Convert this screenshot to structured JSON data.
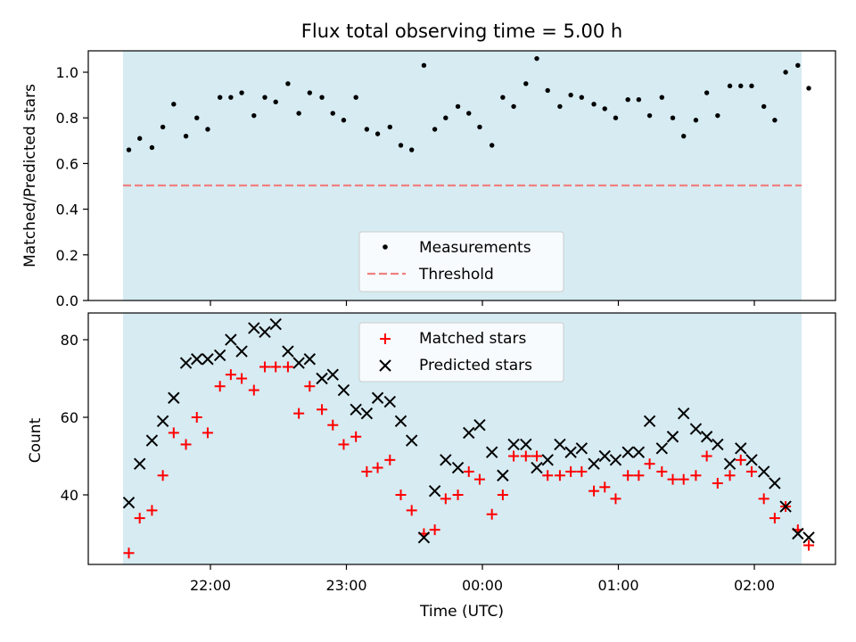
{
  "chart_data": [
    {
      "type": "scatter",
      "title": "Flux total observing time = 5.00 h",
      "xlabel": "",
      "ylabel": "Matched/Predicted stars",
      "xlim": [
        21.33,
        2.67
      ],
      "ylim": [
        0.0,
        1.08
      ],
      "yticks": [
        "0.0",
        "0.2",
        "0.4",
        "0.6",
        "0.8",
        "1.0"
      ],
      "grid": false,
      "legend_position": "lower-center",
      "shaded_interval": {
        "from": 21.4,
        "to": 2.35,
        "color": "#add8e6"
      },
      "series": [
        {
          "name": "Measurements",
          "color": "#000000",
          "marker": "dot",
          "x": [
            21.4,
            21.48,
            21.57,
            21.65,
            21.73,
            21.82,
            21.9,
            21.98,
            22.07,
            22.15,
            22.23,
            22.32,
            22.4,
            22.48,
            22.57,
            22.65,
            22.73,
            22.82,
            22.9,
            22.98,
            23.07,
            23.15,
            23.23,
            23.32,
            23.4,
            23.48,
            23.57,
            23.65,
            23.73,
            23.82,
            23.9,
            23.98,
            24.07,
            24.15,
            24.23,
            24.32,
            24.4,
            24.48,
            24.57,
            24.65,
            24.73,
            24.82,
            24.9,
            24.98,
            25.07,
            25.15,
            25.23,
            25.32,
            25.4,
            25.48,
            25.57,
            25.65,
            25.73,
            25.82,
            25.9,
            25.98,
            26.07,
            26.15,
            26.23,
            26.32,
            26.4
          ],
          "y": [
            0.66,
            0.71,
            0.67,
            0.76,
            0.86,
            0.72,
            0.8,
            0.75,
            0.89,
            0.89,
            0.91,
            0.81,
            0.89,
            0.87,
            0.95,
            0.82,
            0.91,
            0.89,
            0.82,
            0.79,
            0.89,
            0.75,
            0.73,
            0.76,
            0.68,
            0.66,
            1.03,
            0.75,
            0.8,
            0.85,
            0.82,
            0.76,
            0.68,
            0.89,
            0.85,
            0.95,
            1.06,
            0.92,
            0.85,
            0.9,
            0.89,
            0.86,
            0.84,
            0.8,
            0.88,
            0.88,
            0.81,
            0.89,
            0.8,
            0.72,
            0.79,
            0.91,
            0.81,
            0.94,
            0.94,
            0.94,
            0.85,
            0.79,
            1.0,
            1.03,
            0.93
          ]
        },
        {
          "name": "Threshold",
          "color": "#f08080",
          "line_style": "dashed",
          "value": 0.5
        }
      ]
    },
    {
      "type": "scatter",
      "title": "",
      "xlabel": "Time (UTC)",
      "ylabel": "Count",
      "xlim": [
        21.33,
        2.67
      ],
      "ylim": [
        22,
        87
      ],
      "yticks": [
        "40",
        "60",
        "80"
      ],
      "xticks": [
        "22:00",
        "23:00",
        "00:00",
        "01:00",
        "02:00"
      ],
      "grid": false,
      "legend_position": "upper-center",
      "shaded_interval": {
        "from": 21.4,
        "to": 2.35,
        "color": "#add8e6"
      },
      "series": [
        {
          "name": "Matched stars",
          "color": "#ff0000",
          "marker": "plus",
          "x": [
            21.4,
            21.48,
            21.57,
            21.65,
            21.73,
            21.82,
            21.9,
            21.98,
            22.07,
            22.15,
            22.23,
            22.32,
            22.4,
            22.48,
            22.57,
            22.65,
            22.73,
            22.82,
            22.9,
            22.98,
            23.07,
            23.15,
            23.23,
            23.32,
            23.4,
            23.48,
            23.57,
            23.65,
            23.73,
            23.82,
            23.9,
            23.98,
            24.07,
            24.15,
            24.23,
            24.32,
            24.4,
            24.48,
            24.57,
            24.65,
            24.73,
            24.82,
            24.9,
            24.98,
            25.07,
            25.15,
            25.23,
            25.32,
            25.4,
            25.48,
            25.57,
            25.65,
            25.73,
            25.82,
            25.9,
            25.98,
            26.07,
            26.15,
            26.23,
            26.32,
            26.4
          ],
          "y": [
            25,
            34,
            36,
            45,
            56,
            53,
            60,
            56,
            68,
            71,
            70,
            67,
            73,
            73,
            73,
            61,
            68,
            62,
            58,
            53,
            55,
            46,
            47,
            49,
            40,
            36,
            30,
            31,
            39,
            40,
            46,
            44,
            35,
            40,
            50,
            50,
            50,
            45,
            45,
            46,
            46,
            41,
            42,
            39,
            45,
            45,
            48,
            46,
            44,
            44,
            45,
            50,
            43,
            45,
            49,
            46,
            39,
            34,
            37,
            31,
            27
          ],
          "x_note": ""
        },
        {
          "name": "Predicted stars",
          "color": "#000000",
          "marker": "x",
          "x": [
            21.4,
            21.48,
            21.57,
            21.65,
            21.73,
            21.82,
            21.9,
            21.98,
            22.07,
            22.15,
            22.23,
            22.32,
            22.4,
            22.48,
            22.57,
            22.65,
            22.73,
            22.82,
            22.9,
            22.98,
            23.07,
            23.15,
            23.23,
            23.32,
            23.4,
            23.48,
            23.57,
            23.65,
            23.73,
            23.82,
            23.9,
            23.98,
            24.07,
            24.15,
            24.23,
            24.32,
            24.4,
            24.48,
            24.57,
            24.65,
            24.73,
            24.82,
            24.9,
            24.98,
            25.07,
            25.15,
            25.23,
            25.32,
            25.4,
            25.48,
            25.57,
            25.65,
            25.73,
            25.82,
            25.9,
            25.98,
            26.07,
            26.15,
            26.23,
            26.32,
            26.4
          ],
          "y": [
            38,
            48,
            54,
            59,
            65,
            74,
            75,
            75,
            76,
            80,
            77,
            83,
            82,
            84,
            77,
            74,
            75,
            70,
            71,
            67,
            62,
            61,
            65,
            64,
            59,
            54,
            29,
            41,
            49,
            47,
            56,
            58,
            51,
            45,
            53,
            53,
            47,
            49,
            53,
            51,
            52,
            48,
            50,
            49,
            51,
            51,
            59,
            52,
            55,
            61,
            57,
            55,
            53,
            48,
            52,
            49,
            46,
            43,
            37,
            30,
            29
          ]
        }
      ]
    }
  ]
}
